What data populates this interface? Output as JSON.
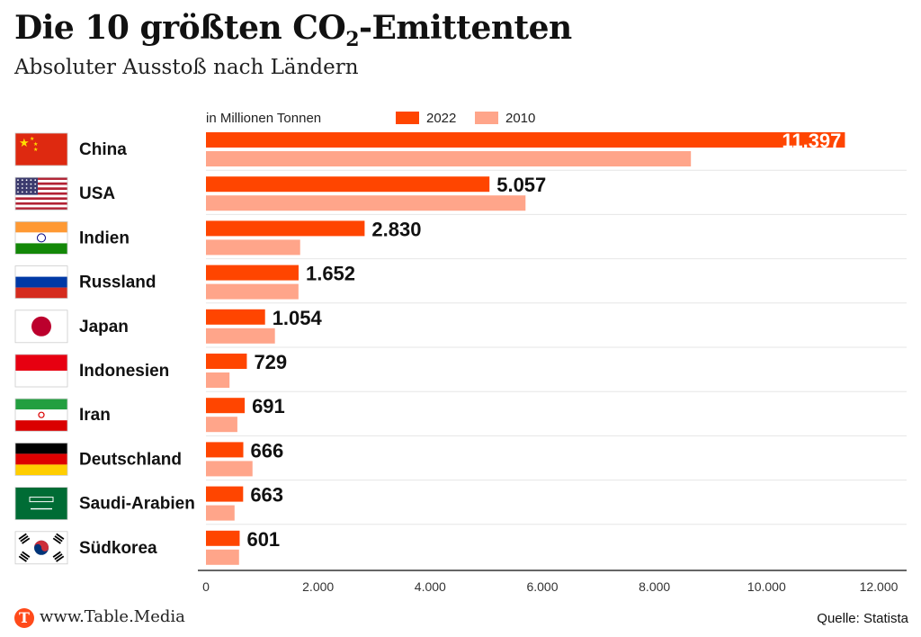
{
  "header": {
    "title_pre": "Die 10 größten CO",
    "title_sub": "2",
    "title_post": "-Emittenten",
    "subtitle": "Absoluter Ausstoß nach Ländern"
  },
  "footer": {
    "logo_letter": "T",
    "url": "www.Table.Media",
    "source": "Quelle: Statista"
  },
  "colors": {
    "series_2022": "#ff4500",
    "series_2010": "#ffa58a",
    "grid": "#e6e6e6",
    "axis": "#333333"
  },
  "chart_data": {
    "type": "bar",
    "orientation": "horizontal",
    "unit_label": "in Millionen Tonnen",
    "categories": [
      "China",
      "USA",
      "Indien",
      "Russland",
      "Japan",
      "Indonesien",
      "Iran",
      "Deutschland",
      "Saudi-Arabien",
      "Südkorea"
    ],
    "flags": [
      "china-flag",
      "usa-flag",
      "india-flag",
      "russia-flag",
      "japan-flag",
      "indonesia-flag",
      "iran-flag",
      "germany-flag",
      "saudi-arabia-flag",
      "south-korea-flag"
    ],
    "series": [
      {
        "name": "2022",
        "values": [
          11397,
          5057,
          2830,
          1652,
          1054,
          729,
          691,
          666,
          663,
          601
        ],
        "labels": [
          "11.397",
          "5.057",
          "2.830",
          "1.652",
          "1.054",
          "729",
          "691",
          "666",
          "663",
          "601"
        ]
      },
      {
        "name": "2010",
        "values": [
          8650,
          5700,
          1680,
          1650,
          1230,
          420,
          560,
          830,
          510,
          590
        ]
      }
    ],
    "xlim": [
      0,
      12000
    ],
    "xticks": [
      0,
      2000,
      4000,
      6000,
      8000,
      10000,
      12000
    ],
    "xtick_labels": [
      "0",
      "2.000",
      "4.000",
      "6.000",
      "8.000",
      "10.000",
      "12.000"
    ],
    "legend_position": "top",
    "grid": false
  }
}
